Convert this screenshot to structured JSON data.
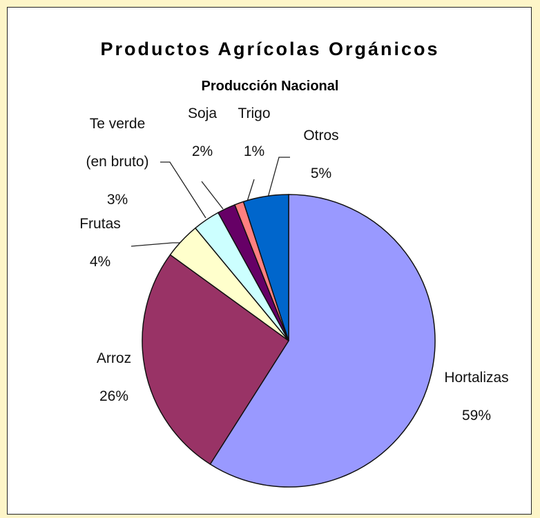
{
  "chart_data": {
    "type": "pie",
    "title": "Productos Agrícolas Orgánicos",
    "subtitle": "Producción Nacional",
    "categories": [
      "Hortalizas",
      "Arroz",
      "Frutas",
      "Te verde (en bruto)",
      "Soja",
      "Trigo",
      "Otros"
    ],
    "values": [
      59,
      26,
      4,
      3,
      2,
      1,
      5
    ],
    "value_labels": [
      "59%",
      "26%",
      "4%",
      "3%",
      "2%",
      "1%",
      "5%"
    ],
    "colors": [
      "#9999ff",
      "#993366",
      "#ffffcc",
      "#ccffff",
      "#660066",
      "#ff8080",
      "#0066cc"
    ]
  }
}
